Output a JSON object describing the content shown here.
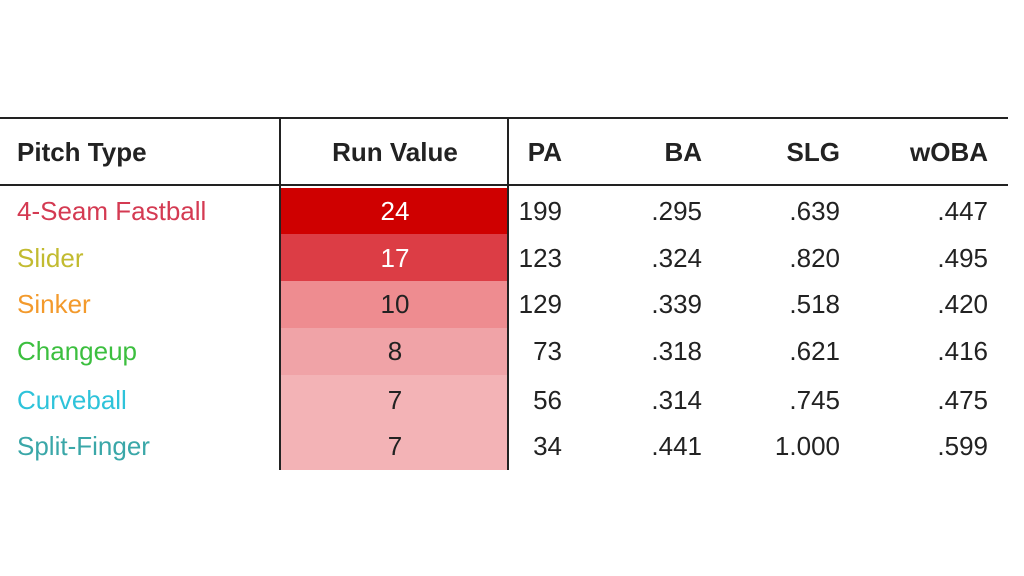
{
  "table": {
    "header": [
      "Pitch Type",
      "Run Value",
      "PA",
      "BA",
      "SLG",
      "wOBA"
    ],
    "rows": [
      [
        "4-Seam Fastball",
        "24",
        "199",
        ".295",
        ".639",
        ".447"
      ],
      [
        "Slider",
        "17",
        "123",
        ".324",
        ".820",
        ".495"
      ],
      [
        "Sinker",
        "10",
        "129",
        ".339",
        ".518",
        ".420"
      ],
      [
        "Changeup",
        "8",
        "73",
        ".318",
        ".621",
        ".416"
      ],
      [
        "Curveball",
        "7",
        "56",
        ".314",
        ".745",
        ".475"
      ],
      [
        "Split-Finger",
        "7",
        "34",
        ".441",
        "1.000",
        ".599"
      ]
    ],
    "name_colors": [
      "#d43a52",
      "#c2bb30",
      "#f39a2c",
      "#3cbf3f",
      "#2ec3da",
      "#3aa7a8"
    ],
    "run_value_fills": [
      "#cf0000",
      "#dc3d45",
      "#ee8c90",
      "#f0a3a7",
      "#f3b3b6",
      "#f3b3b6"
    ],
    "run_value_text": [
      "#ffffff",
      "#ffffff",
      "#222222",
      "#222222",
      "#222222",
      "#222222"
    ]
  }
}
